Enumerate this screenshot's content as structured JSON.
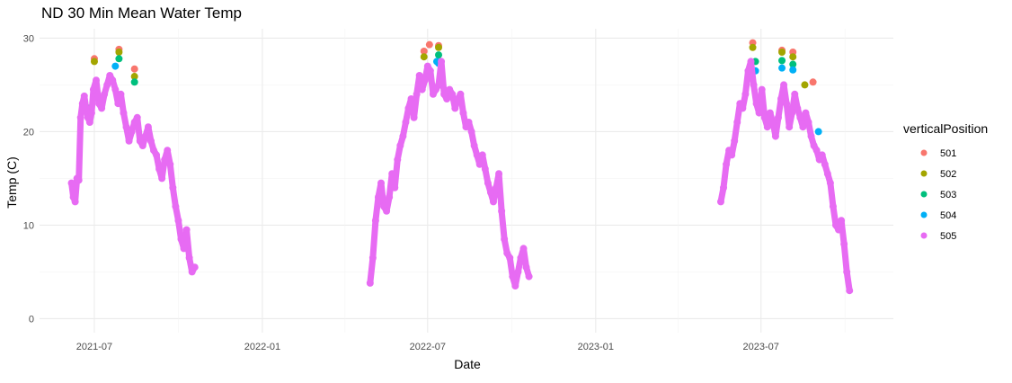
{
  "chart_data": {
    "type": "scatter",
    "title": "ND 30 Min Mean Water Temp",
    "xlabel": "Date",
    "ylabel": "Temp (C)",
    "xlim": [
      "2021-05-02",
      "2023-11-23"
    ],
    "ylim": [
      -1.5,
      31
    ],
    "x_ticks": [
      "2021-07-01",
      "2022-01-01",
      "2022-07-01",
      "2023-01-01",
      "2023-07-01"
    ],
    "x_tick_labels": [
      "2021-07",
      "2022-01",
      "2022-07",
      "2023-01",
      "2023-07"
    ],
    "y_ticks": [
      0,
      10,
      20,
      30
    ],
    "y_tick_labels": [
      "0",
      "10",
      "20",
      "30"
    ],
    "grid": true,
    "legend_title": "verticalPosition",
    "legend_position": "right",
    "series": [
      {
        "name": "501",
        "color": "#F8766D",
        "x": [
          "2021-07-01",
          "2021-07-28",
          "2021-08-14",
          "2022-06-27",
          "2022-07-03",
          "2022-07-13",
          "2023-06-22",
          "2023-07-24",
          "2023-08-05",
          "2023-08-27"
        ],
        "y": [
          27.8,
          28.8,
          26.7,
          28.6,
          29.3,
          29.2,
          29.5,
          28.7,
          28.5,
          25.3
        ]
      },
      {
        "name": "502",
        "color": "#A3A500",
        "x": [
          "2021-07-01",
          "2021-07-28",
          "2021-08-14",
          "2022-06-27",
          "2022-07-13",
          "2023-06-22",
          "2023-07-24",
          "2023-08-05",
          "2023-08-18"
        ],
        "y": [
          27.5,
          28.5,
          25.9,
          28.0,
          29.0,
          29.0,
          28.5,
          28.0,
          25.0
        ]
      },
      {
        "name": "503",
        "color": "#00BF7D",
        "x": [
          "2021-06-25",
          "2021-07-28",
          "2021-08-14",
          "2022-07-13",
          "2023-06-25",
          "2023-07-24",
          "2023-08-05"
        ],
        "y": [
          22.5,
          27.8,
          25.3,
          28.2,
          27.5,
          27.6,
          27.2
        ]
      },
      {
        "name": "504",
        "color": "#00B0F6",
        "x": [
          "2021-07-24",
          "2022-07-11",
          "2022-07-13",
          "2023-06-25",
          "2023-07-24",
          "2023-08-05",
          "2023-09-02"
        ],
        "y": [
          27.0,
          27.5,
          27.3,
          26.5,
          26.8,
          26.6,
          20.0
        ]
      },
      {
        "name": "505",
        "color": "#E76BF3",
        "x": [
          "2021-06-06",
          "2021-06-08",
          "2021-06-10",
          "2021-06-12",
          "2021-06-14",
          "2021-06-16",
          "2021-06-18",
          "2021-06-20",
          "2021-06-22",
          "2021-06-24",
          "2021-06-26",
          "2021-06-28",
          "2021-06-30",
          "2021-07-03",
          "2021-07-06",
          "2021-07-09",
          "2021-07-12",
          "2021-07-15",
          "2021-07-18",
          "2021-07-21",
          "2021-07-24",
          "2021-07-27",
          "2021-07-30",
          "2021-08-02",
          "2021-08-05",
          "2021-08-08",
          "2021-08-11",
          "2021-08-14",
          "2021-08-17",
          "2021-08-20",
          "2021-08-23",
          "2021-08-26",
          "2021-08-29",
          "2021-09-01",
          "2021-09-04",
          "2021-09-07",
          "2021-09-10",
          "2021-09-13",
          "2021-09-16",
          "2021-09-19",
          "2021-09-22",
          "2021-09-25",
          "2021-09-28",
          "2021-10-01",
          "2021-10-04",
          "2021-10-07",
          "2021-10-10",
          "2021-10-13",
          "2021-10-16",
          "2021-10-19",
          "2022-04-29",
          "2022-05-02",
          "2022-05-05",
          "2022-05-08",
          "2022-05-11",
          "2022-05-14",
          "2022-05-17",
          "2022-05-20",
          "2022-05-23",
          "2022-05-26",
          "2022-05-29",
          "2022-06-01",
          "2022-06-04",
          "2022-06-07",
          "2022-06-10",
          "2022-06-13",
          "2022-06-16",
          "2022-06-19",
          "2022-06-22",
          "2022-06-25",
          "2022-06-28",
          "2022-07-01",
          "2022-07-04",
          "2022-07-07",
          "2022-07-10",
          "2022-07-13",
          "2022-07-16",
          "2022-07-19",
          "2022-07-22",
          "2022-07-25",
          "2022-07-28",
          "2022-07-31",
          "2022-08-03",
          "2022-08-06",
          "2022-08-09",
          "2022-08-12",
          "2022-08-15",
          "2022-08-18",
          "2022-08-21",
          "2022-08-24",
          "2022-08-27",
          "2022-08-30",
          "2022-09-02",
          "2022-09-05",
          "2022-09-08",
          "2022-09-11",
          "2022-09-14",
          "2022-09-17",
          "2022-09-20",
          "2022-09-23",
          "2022-09-26",
          "2022-09-29",
          "2022-10-02",
          "2022-10-05",
          "2022-10-08",
          "2022-10-11",
          "2022-10-14",
          "2022-10-17",
          "2022-10-20",
          "2023-05-18",
          "2023-05-21",
          "2023-05-24",
          "2023-05-27",
          "2023-05-30",
          "2023-06-02",
          "2023-06-05",
          "2023-06-08",
          "2023-06-11",
          "2023-06-14",
          "2023-06-17",
          "2023-06-20",
          "2023-06-23",
          "2023-06-26",
          "2023-06-29",
          "2023-07-02",
          "2023-07-05",
          "2023-07-08",
          "2023-07-11",
          "2023-07-14",
          "2023-07-17",
          "2023-07-20",
          "2023-07-23",
          "2023-07-26",
          "2023-07-29",
          "2023-08-01",
          "2023-08-04",
          "2023-08-07",
          "2023-08-10",
          "2023-08-13",
          "2023-08-16",
          "2023-08-19",
          "2023-08-22",
          "2023-08-25",
          "2023-08-28",
          "2023-08-31",
          "2023-09-03",
          "2023-09-06",
          "2023-09-09",
          "2023-09-12",
          "2023-09-15",
          "2023-09-18",
          "2023-09-21",
          "2023-09-24",
          "2023-09-27",
          "2023-09-30",
          "2023-10-03",
          "2023-10-06"
        ],
        "y": [
          14.5,
          13.0,
          12.5,
          15.0,
          14.8,
          21.5,
          23.0,
          23.8,
          22.5,
          21.5,
          21.0,
          22.0,
          24.5,
          25.5,
          23.0,
          22.5,
          24.0,
          25.0,
          26.0,
          25.5,
          24.5,
          23.0,
          24.0,
          22.0,
          20.5,
          19.0,
          20.0,
          21.0,
          21.5,
          19.0,
          18.5,
          19.5,
          20.5,
          19.0,
          18.0,
          17.5,
          16.0,
          15.0,
          17.0,
          18.0,
          16.5,
          14.0,
          12.0,
          10.5,
          8.5,
          7.5,
          9.5,
          6.5,
          5.0,
          5.5,
          3.8,
          6.5,
          10.5,
          13.0,
          14.5,
          12.0,
          11.5,
          13.0,
          15.5,
          14.0,
          17.0,
          18.5,
          19.5,
          21.0,
          22.5,
          23.5,
          21.5,
          24.0,
          26.0,
          24.5,
          25.5,
          27.0,
          26.5,
          24.0,
          24.5,
          25.0,
          27.5,
          24.0,
          23.5,
          24.5,
          24.0,
          22.5,
          23.5,
          24.0,
          22.0,
          20.5,
          21.0,
          20.0,
          18.5,
          17.5,
          16.5,
          17.5,
          16.0,
          14.5,
          13.5,
          12.5,
          14.0,
          15.5,
          11.5,
          8.5,
          7.0,
          6.5,
          4.5,
          3.5,
          5.0,
          6.5,
          7.5,
          5.5,
          4.5,
          12.5,
          14.0,
          16.5,
          18.0,
          17.5,
          19.0,
          21.0,
          23.0,
          22.5,
          24.0,
          26.5,
          27.5,
          25.0,
          23.0,
          22.0,
          24.5,
          21.5,
          20.5,
          22.0,
          21.0,
          19.5,
          21.5,
          23.5,
          25.0,
          23.0,
          20.5,
          22.0,
          24.0,
          22.5,
          21.5,
          20.5,
          22.0,
          21.0,
          19.5,
          18.5,
          18.0,
          17.0,
          17.5,
          16.5,
          15.5,
          14.5,
          12.0,
          10.0,
          9.5,
          10.5,
          8.0,
          5.0,
          3.0
        ]
      }
    ]
  }
}
